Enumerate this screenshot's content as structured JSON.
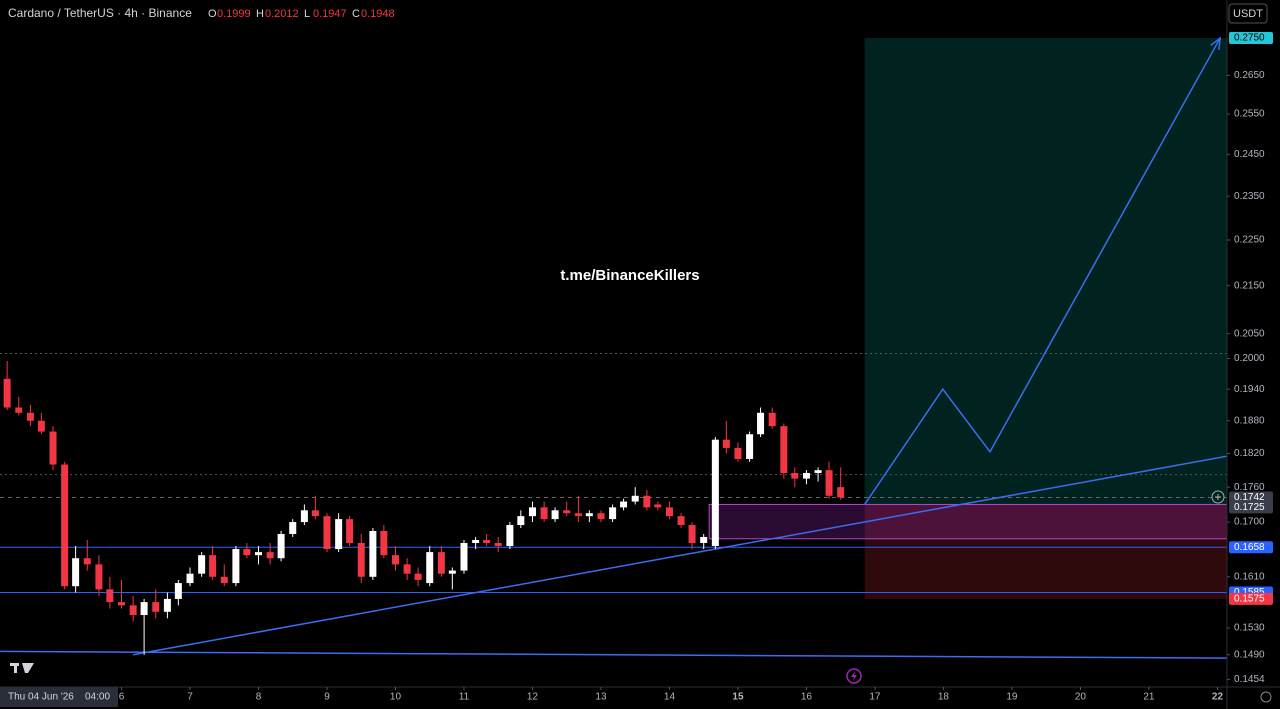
{
  "chart_data": {
    "type": "candlestick",
    "title": "Cardano / TetherUS · 4h · Binance",
    "ohlc_header": [
      {
        "key": "O",
        "value": "0.1999"
      },
      {
        "key": "H",
        "value": "0.2012"
      },
      {
        "key": "L",
        "value": "0.1947"
      },
      {
        "key": "C",
        "value": "0.1948"
      }
    ],
    "currency_button": "USDT",
    "watermark": "t.me/BinanceKillers",
    "cursor_time": "Thu 04 Jun '26",
    "cursor_clock": "04:00",
    "log_scale": true,
    "up_color": "#ffffff",
    "down_color": "#f23645",
    "x": [
      4.33,
      4.5,
      4.67,
      4.83,
      5,
      5.17,
      5.33,
      5.5,
      5.67,
      5.83,
      6,
      6.17,
      6.33,
      6.5,
      6.67,
      6.83,
      7,
      7.17,
      7.33,
      7.5,
      7.67,
      7.83,
      8,
      8.17,
      8.33,
      8.5,
      8.67,
      8.83,
      9,
      9.17,
      9.33,
      9.5,
      9.67,
      9.83,
      10,
      10.17,
      10.33,
      10.5,
      10.67,
      10.83,
      11,
      11.17,
      11.33,
      11.5,
      11.67,
      11.83,
      12,
      12.17,
      12.33,
      12.5,
      12.67,
      12.83,
      13,
      13.17,
      13.33,
      13.5,
      13.67,
      13.83,
      14,
      14.17,
      14.33,
      14.5,
      14.67,
      14.83,
      15,
      15.17,
      15.33,
      15.5,
      15.67,
      15.83,
      16,
      16.17,
      16.33,
      16.5
    ],
    "open": [
      0.196,
      0.1905,
      0.1895,
      0.188,
      0.186,
      0.18,
      0.1595,
      0.164,
      0.163,
      0.159,
      0.157,
      0.1565,
      0.155,
      0.157,
      0.1555,
      0.1575,
      0.16,
      0.1615,
      0.1645,
      0.161,
      0.16,
      0.1655,
      0.1645,
      0.165,
      0.164,
      0.168,
      0.17,
      0.172,
      0.171,
      0.1655,
      0.1705,
      0.1665,
      0.161,
      0.1685,
      0.1645,
      0.163,
      0.1615,
      0.16,
      0.165,
      0.1615,
      0.162,
      0.1665,
      0.167,
      0.1665,
      0.166,
      0.1695,
      0.171,
      0.1725,
      0.1705,
      0.172,
      0.1715,
      0.171,
      0.1715,
      0.1705,
      0.1725,
      0.1735,
      0.1745,
      0.173,
      0.1725,
      0.171,
      0.1695,
      0.1665,
      0.166,
      0.1845,
      0.183,
      0.181,
      0.1855,
      0.1895,
      0.187,
      0.1785,
      0.1775,
      0.1785,
      0.179,
      0.176
    ],
    "high": [
      0.1995,
      0.1925,
      0.191,
      0.1895,
      0.187,
      0.1805,
      0.166,
      0.167,
      0.1645,
      0.161,
      0.1605,
      0.158,
      0.1575,
      0.159,
      0.1585,
      0.1605,
      0.1625,
      0.165,
      0.166,
      0.163,
      0.166,
      0.1665,
      0.166,
      0.1665,
      0.1685,
      0.1705,
      0.173,
      0.1745,
      0.1715,
      0.1715,
      0.171,
      0.168,
      0.169,
      0.1695,
      0.166,
      0.164,
      0.1625,
      0.166,
      0.166,
      0.1625,
      0.167,
      0.1675,
      0.168,
      0.1675,
      0.17,
      0.172,
      0.1735,
      0.1735,
      0.1725,
      0.1735,
      0.1745,
      0.172,
      0.172,
      0.173,
      0.174,
      0.176,
      0.1755,
      0.1735,
      0.1735,
      0.1715,
      0.17,
      0.168,
      0.185,
      0.188,
      0.184,
      0.186,
      0.1905,
      0.1905,
      0.1875,
      0.1795,
      0.179,
      0.1795,
      0.1805,
      0.1795
    ],
    "low": [
      0.19,
      0.189,
      0.187,
      0.1855,
      0.179,
      0.159,
      0.1585,
      0.162,
      0.158,
      0.156,
      0.156,
      0.154,
      0.149,
      0.1545,
      0.1545,
      0.1565,
      0.1595,
      0.161,
      0.1605,
      0.1595,
      0.1595,
      0.164,
      0.163,
      0.163,
      0.1635,
      0.1675,
      0.1695,
      0.1705,
      0.165,
      0.165,
      0.166,
      0.16,
      0.1605,
      0.164,
      0.162,
      0.1605,
      0.1595,
      0.1595,
      0.161,
      0.159,
      0.1615,
      0.1655,
      0.166,
      0.165,
      0.1655,
      0.169,
      0.17,
      0.17,
      0.17,
      0.171,
      0.17,
      0.17,
      0.17,
      0.17,
      0.172,
      0.173,
      0.172,
      0.172,
      0.1705,
      0.169,
      0.1655,
      0.1655,
      0.1655,
      0.182,
      0.1805,
      0.1805,
      0.185,
      0.1865,
      0.1775,
      0.176,
      0.1765,
      0.177,
      0.174,
      0.1738
    ],
    "close": [
      0.1905,
      0.1895,
      0.188,
      0.186,
      0.18,
      0.1595,
      0.164,
      0.163,
      0.159,
      0.157,
      0.1565,
      0.155,
      0.157,
      0.1555,
      0.1575,
      0.16,
      0.1615,
      0.1645,
      0.161,
      0.16,
      0.1655,
      0.1645,
      0.165,
      0.164,
      0.168,
      0.17,
      0.172,
      0.171,
      0.1655,
      0.1705,
      0.1665,
      0.161,
      0.1685,
      0.1645,
      0.163,
      0.1615,
      0.1605,
      0.165,
      0.1615,
      0.162,
      0.1665,
      0.167,
      0.1665,
      0.166,
      0.1695,
      0.171,
      0.1725,
      0.1705,
      0.172,
      0.1715,
      0.171,
      0.1715,
      0.1705,
      0.1725,
      0.1735,
      0.1745,
      0.1725,
      0.1725,
      0.171,
      0.1695,
      0.1665,
      0.1675,
      0.1845,
      0.183,
      0.181,
      0.1855,
      0.1895,
      0.187,
      0.1785,
      0.1775,
      0.1785,
      0.179,
      0.1745,
      0.1742
    ],
    "xlim": [
      4.226,
      22.14
    ],
    "xticks": [
      6,
      7,
      8,
      9,
      10,
      11,
      12,
      13,
      14,
      15,
      16,
      17,
      18,
      19,
      20,
      21,
      22
    ],
    "ylim": [
      0.1443,
      0.2856
    ],
    "yticks": [
      {
        "value": 0.265,
        "label": "0.2650"
      },
      {
        "value": 0.255,
        "label": "0.2550"
      },
      {
        "value": 0.245,
        "label": "0.2450"
      },
      {
        "value": 0.235,
        "label": "0.2350"
      },
      {
        "value": 0.225,
        "label": "0.2250"
      },
      {
        "value": 0.215,
        "label": "0.2150"
      },
      {
        "value": 0.205,
        "label": "0.2050"
      },
      {
        "value": 0.2,
        "label": "0.2000"
      },
      {
        "value": 0.194,
        "label": "0.1940"
      },
      {
        "value": 0.188,
        "label": "0.1880"
      },
      {
        "value": 0.182,
        "label": "0.1820"
      },
      {
        "value": 0.176,
        "label": "0.1760"
      },
      {
        "value": 0.17,
        "label": "0.1700"
      },
      {
        "value": 0.161,
        "label": "0.1610"
      },
      {
        "value": 0.153,
        "label": "0.1530"
      },
      {
        "value": 0.149,
        "label": "0.1490"
      },
      {
        "value": 0.1454,
        "label": "0.1454"
      }
    ],
    "price_labels": [
      {
        "value": 0.275,
        "label": "0.2750",
        "color": "#26c6da"
      },
      {
        "value": 0.1742,
        "label": "0.1742",
        "color": "#3a3e4a"
      },
      {
        "value": 0.1725,
        "label": "0.1725",
        "color": "#3a3e4a"
      },
      {
        "value": 0.1658,
        "label": "0.1658",
        "color": "#2962ff"
      },
      {
        "value": 0.1585,
        "label": "0.1585",
        "color": "#2962ff"
      },
      {
        "value": 0.1575,
        "label": "0.1575",
        "color": "#f23645"
      }
    ],
    "zones": [
      {
        "x": [
          16.85,
          22.14
        ],
        "y": [
          0.173,
          0.275
        ],
        "color": "rgba(0,137,123,0.26)"
      },
      {
        "x": [
          16.85,
          22.14
        ],
        "y": [
          0.1575,
          0.173
        ],
        "color": "rgba(178,40,51,0.26)"
      },
      {
        "x": [
          14.58,
          22.14
        ],
        "y": [
          0.1672,
          0.173
        ],
        "color": "rgba(156,39,176,0.28)",
        "stroke": "#b04ac8"
      }
    ],
    "hlines": [
      {
        "value": 0.201,
        "color": "#555",
        "dash": "2,3"
      },
      {
        "value": 0.1782,
        "color": "#555",
        "dash": "2,3"
      },
      {
        "value": 0.1742,
        "color": "#666",
        "dash": "4,4"
      },
      {
        "value": 0.1658,
        "color": "#2962ff"
      },
      {
        "value": 0.1585,
        "color": "#2962ff"
      }
    ],
    "trendlines": [
      {
        "x": [
          6.17,
          22.14
        ],
        "y": [
          0.149,
          0.1815
        ],
        "color": "#3d6cf0"
      },
      {
        "x": [
          4.226,
          22.14
        ],
        "y": [
          0.1495,
          0.1485
        ],
        "color": "#3d6cf0"
      }
    ],
    "projection": {
      "x": [
        16.85,
        17.99,
        18.68,
        22.04
      ],
      "y": [
        0.173,
        0.194,
        0.1823,
        0.275
      ],
      "color": "#3d6cf0"
    }
  }
}
